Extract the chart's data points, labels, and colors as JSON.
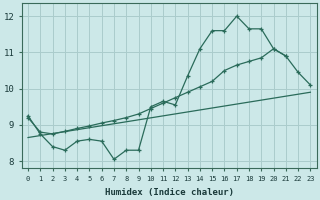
{
  "xlabel": "Humidex (Indice chaleur)",
  "bg_color": "#cce8e8",
  "grid_color": "#aacccc",
  "line_color": "#2a6b5a",
  "xlim": [
    -0.5,
    23.5
  ],
  "ylim": [
    7.8,
    12.35
  ],
  "xticks": [
    0,
    1,
    2,
    3,
    4,
    5,
    6,
    7,
    8,
    9,
    10,
    11,
    12,
    13,
    14,
    15,
    16,
    17,
    18,
    19,
    20,
    21,
    22,
    23
  ],
  "yticks": [
    8,
    9,
    10,
    11,
    12
  ],
  "curve1_x": [
    0,
    1,
    2,
    3,
    4,
    5,
    6,
    7,
    8,
    9,
    10,
    11,
    12,
    13,
    14,
    15,
    16,
    17,
    18,
    19,
    20,
    21
  ],
  "curve1_y": [
    9.25,
    8.75,
    8.4,
    8.3,
    8.55,
    8.6,
    8.55,
    8.05,
    8.3,
    8.3,
    9.5,
    9.65,
    9.55,
    10.35,
    11.1,
    11.6,
    11.6,
    12.0,
    11.65,
    11.65,
    11.1,
    10.9
  ],
  "curve2_x": [
    0,
    1,
    2,
    3,
    4,
    5,
    6,
    7,
    8,
    9,
    10,
    11,
    12,
    13,
    14,
    15,
    16,
    17,
    18,
    19,
    20,
    21,
    22,
    23
  ],
  "curve2_y": [
    9.2,
    8.8,
    8.75,
    8.82,
    8.9,
    8.97,
    9.05,
    9.12,
    9.2,
    9.3,
    9.45,
    9.6,
    9.75,
    9.9,
    10.05,
    10.2,
    10.5,
    10.65,
    10.75,
    10.85,
    11.1,
    10.9,
    10.45,
    10.1
  ],
  "line_x": [
    0,
    23
  ],
  "line_y": [
    8.65,
    9.9
  ]
}
